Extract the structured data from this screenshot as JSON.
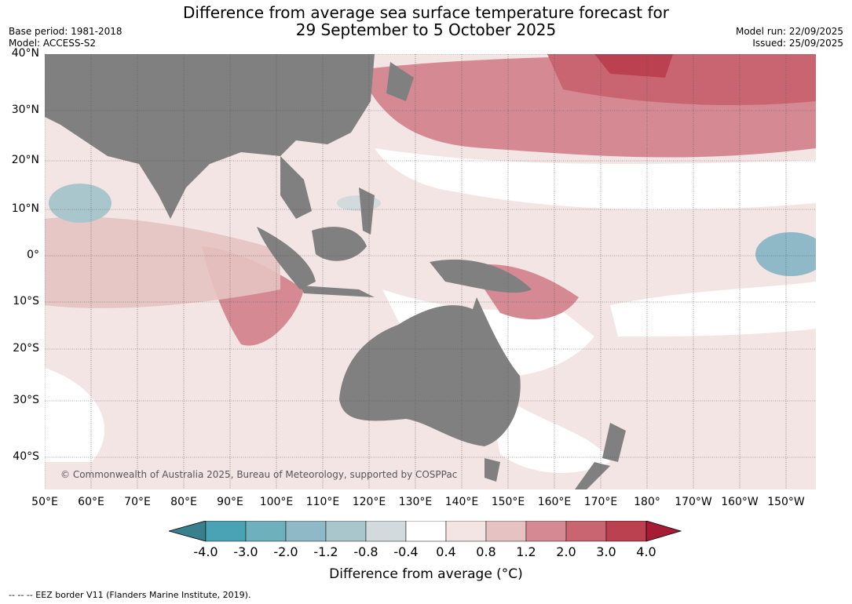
{
  "title_line1": "Difference from average sea surface temperature forecast for",
  "title_line2": "29 September to 5 October 2025",
  "meta_left": {
    "base_period": "Base period: 1981-2018",
    "model": "Model: ACCESS-S2"
  },
  "meta_right": {
    "model_run": "Model run: 22/09/2025",
    "issued": "Issued: 25/09/2025"
  },
  "lat_labels": [
    "40°N",
    "30°N",
    "20°N",
    "10°N",
    "0°",
    "10°S",
    "20°S",
    "30°S",
    "40°S"
  ],
  "lon_labels": [
    "50°E",
    "60°E",
    "70°E",
    "80°E",
    "90°E",
    "100°E",
    "110°E",
    "120°E",
    "130°E",
    "140°E",
    "150°E",
    "160°E",
    "170°E",
    "180°",
    "170°W",
    "160°W",
    "150°W"
  ],
  "colorbar": {
    "labels": [
      "-4.0",
      "-3.0",
      "-2.0",
      "-1.2",
      "-0.8",
      "-0.4",
      "0.4",
      "0.8",
      "1.2",
      "2.0",
      "3.0",
      "4.0"
    ],
    "colors": [
      "#3a7f8c",
      "#4aa3b5",
      "#6fb0bd",
      "#8fb9c6",
      "#aac6cd",
      "#d3dadd",
      "#ffffff",
      "#f4e5e5",
      "#e6c2c2",
      "#d58a93",
      "#c96570",
      "#bc4150",
      "#a81b35"
    ],
    "title": "Difference from average (°C)"
  },
  "copyright": "© Commonwealth of Australia 2025, Bureau of Meteorology, supported by COSPPac",
  "footer": "-- -- -- EEZ border V11 (Flanders Marine Institute, 2019).",
  "land_color": "#808080",
  "ocean_base_color": "#f4e5e5"
}
